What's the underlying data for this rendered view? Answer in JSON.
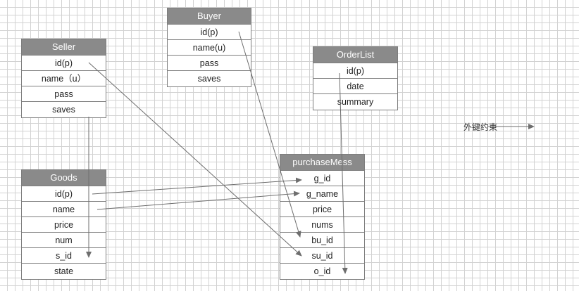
{
  "entities": {
    "buyer": {
      "title": "Buyer",
      "fields": [
        "id(p)",
        "name(u)",
        "pass",
        "saves"
      ]
    },
    "seller": {
      "title": "Seller",
      "fields": [
        "id(p)",
        "name（u）",
        "pass",
        "saves"
      ]
    },
    "orderlist": {
      "title": "OrderList",
      "fields": [
        "id(p)",
        "date",
        "summary"
      ]
    },
    "goods": {
      "title": "Goods",
      "fields": [
        "id(p)",
        "name",
        "price",
        "num",
        "s_id",
        "state"
      ]
    },
    "purchasemess": {
      "title": "purchaseMess",
      "fields": [
        "g_id",
        "g_name",
        "price",
        "nums",
        "bu_id",
        "su_id",
        "o_id"
      ]
    }
  },
  "legend": {
    "label": "外键约束"
  },
  "relations": [
    {
      "from": "Buyer.id(p)",
      "to": "purchaseMess.bu_id"
    },
    {
      "from": "Seller.id(p)",
      "to": "purchaseMess.su_id"
    },
    {
      "from": "Seller.id(p)",
      "to": "Goods.s_id"
    },
    {
      "from": "Goods.id(p)",
      "to": "purchaseMess.g_id"
    },
    {
      "from": "Goods.name",
      "to": "purchaseMess.g_name"
    },
    {
      "from": "OrderList.id(p)",
      "to": "purchaseMess.o_id"
    }
  ],
  "colors": {
    "header": "#8a8a8a",
    "border": "#7d7d7d",
    "arrow": "#6e6e6e",
    "grid": "#d2d2d2"
  }
}
